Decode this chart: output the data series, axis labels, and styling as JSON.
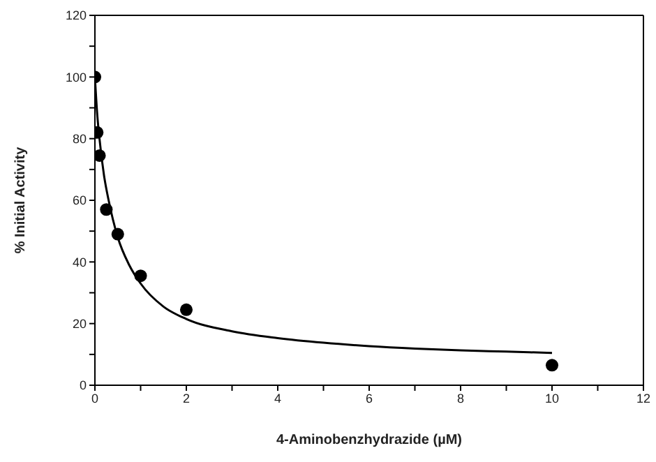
{
  "chart_data": {
    "type": "scatter",
    "xlabel": "4-Aminobenzhydrazide (µM)",
    "ylabel": "% Initial Activity",
    "xlim": [
      0,
      12
    ],
    "xticks": [
      0,
      {
        "value": 1,
        "label": null
      },
      2,
      {
        "value": 3,
        "label": null
      },
      4,
      {
        "value": 5,
        "label": null
      },
      6,
      {
        "value": 7,
        "label": null
      },
      8,
      {
        "value": 9,
        "label": null
      },
      10,
      {
        "value": 11,
        "label": null
      },
      12
    ],
    "ylim": [
      0,
      120
    ],
    "yticks": [
      0,
      {
        "value": 10,
        "label": null
      },
      20,
      {
        "value": 30,
        "label": null
      },
      40,
      {
        "value": 50,
        "label": null
      },
      60,
      {
        "value": 70,
        "label": null
      },
      80,
      {
        "value": 90,
        "label": null
      },
      100,
      {
        "value": 110,
        "label": null
      },
      120
    ],
    "grid": false,
    "series": [
      {
        "color": "#000000",
        "marker": "circle",
        "x": [
          0,
          0.05,
          0.1,
          0.25,
          0.5,
          1,
          2,
          10
        ],
        "values": [
          100,
          82,
          74.5,
          57,
          49,
          35.5,
          24.5,
          6.5
        ]
      },
      {
        "type": "line",
        "color": "#000000",
        "marker": "none",
        "line_style": "solid",
        "x": [
          0,
          0.05,
          0.1,
          0.2,
          0.3,
          0.5,
          0.75,
          1,
          1.5,
          2,
          3,
          4,
          5,
          6,
          7,
          8,
          9,
          10
        ],
        "values": [
          100,
          88,
          80,
          68,
          60,
          48,
          39,
          33,
          25.5,
          21.5,
          17.5,
          15.3,
          13.8,
          12.7,
          11.9,
          11.3,
          10.9,
          10.5
        ]
      }
    ]
  }
}
